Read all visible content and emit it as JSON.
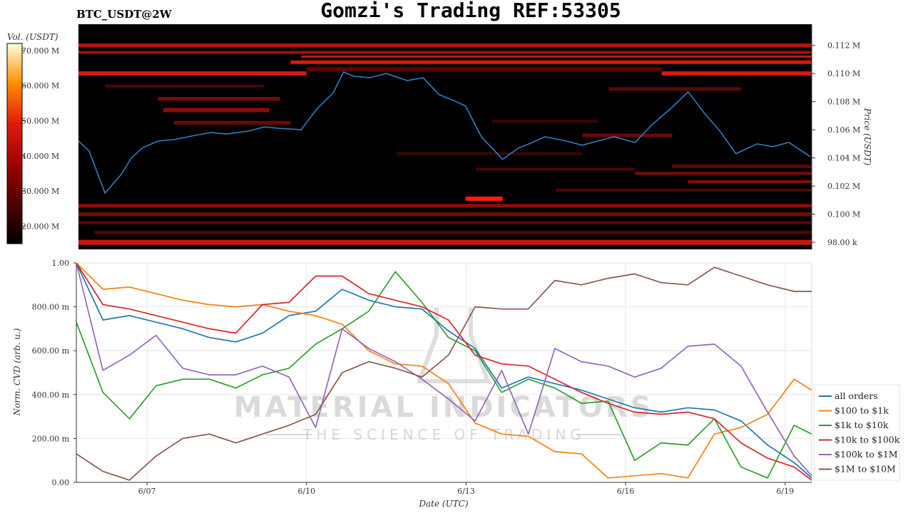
{
  "header": {
    "title": "Gomzi's Trading REF:53305",
    "symbol": "BTC_USDT@2W"
  },
  "watermark": {
    "line1": "MATERIAL INDICATORS",
    "line2": "THE SCIENCE OF TRADING"
  },
  "heatmap": {
    "colorbar_label": "Vol. (USDT)",
    "colorbar_ticks": [
      "70.000 M",
      "60.000 M",
      "50.000 M",
      "40.000 M",
      "30.000 M",
      "20.000 M"
    ],
    "price_label": "Price (USDT)",
    "price_ticks": [
      "0.112 M",
      "0.110 M",
      "0.108 M",
      "0.106 M",
      "0.104 M",
      "0.102 M",
      "0.100 M",
      "98.00 k"
    ],
    "colors": {
      "bg": "#000000",
      "line": "#2f7fc1"
    }
  },
  "cvd": {
    "y_label": "Norm. CVD (arb. u.)",
    "y_ticks": [
      "1.00",
      "800.00 m",
      "600.00 m",
      "400.00 m",
      "200.00 m",
      "0.00"
    ],
    "x_label": "Date (UTC)",
    "x_ticks": [
      "6/07",
      "6/10",
      "6/13",
      "6/16",
      "6/19"
    ]
  },
  "chart_data": [
    {
      "type": "heatmap",
      "title": "BTC_USDT@2W",
      "xlabel": "",
      "ylabel": "Price (USDT)",
      "ylim": [
        97500,
        113500
      ],
      "colorbar_range_musdt": [
        15,
        72
      ],
      "price_line": {
        "x_days": [
          0,
          0.2,
          0.5,
          0.8,
          1.0,
          1.2,
          1.5,
          1.8,
          2.2,
          2.5,
          2.8,
          3.2,
          3.5,
          3.8,
          4.2,
          4.5,
          4.8,
          5.0,
          5.2,
          5.5,
          5.8,
          6.2,
          6.5,
          6.8,
          7.0,
          7.3,
          7.6,
          8.0,
          8.3,
          8.5,
          8.8,
          9.2,
          9.5,
          9.8,
          10.1,
          10.5,
          10.8,
          11.2,
          11.5,
          11.8,
          12.1,
          12.4,
          12.8,
          13.1,
          13.4,
          13.8
        ],
        "y_price": [
          105200,
          104500,
          101500,
          102800,
          104000,
          104700,
          105200,
          105300,
          105600,
          105800,
          105700,
          105900,
          106200,
          106100,
          106000,
          107500,
          108600,
          110100,
          109800,
          109700,
          110000,
          109500,
          109700,
          108500,
          108200,
          107700,
          105500,
          103900,
          104700,
          105000,
          105500,
          105200,
          104900,
          105200,
          105500,
          105100,
          106300,
          107600,
          108700,
          107200,
          105900,
          104300,
          105000,
          104800,
          105100,
          104100
        ]
      }
    },
    {
      "type": "line",
      "title": "",
      "xlabel": "Date (UTC)",
      "ylabel": "Norm. CVD (arb. u.)",
      "ylim": [
        0,
        1
      ],
      "x_days": [
        0,
        0.5,
        1,
        1.5,
        2,
        2.5,
        3,
        3.5,
        4,
        4.5,
        5,
        5.5,
        6,
        6.5,
        7,
        7.5,
        8,
        8.5,
        9,
        9.5,
        10,
        10.5,
        11,
        11.5,
        12,
        12.5,
        13,
        13.5,
        13.83
      ],
      "x_tick_days": [
        1.33,
        4.33,
        7.33,
        10.33,
        13.33
      ],
      "legend": "right",
      "grid": true,
      "series": [
        {
          "name": "all orders",
          "color": "#1f77b4",
          "values": [
            1.0,
            0.74,
            0.76,
            0.73,
            0.7,
            0.66,
            0.64,
            0.68,
            0.76,
            0.78,
            0.88,
            0.83,
            0.8,
            0.79,
            0.69,
            0.61,
            0.43,
            0.48,
            0.45,
            0.42,
            0.38,
            0.34,
            0.32,
            0.34,
            0.33,
            0.28,
            0.17,
            0.09,
            0.02
          ]
        },
        {
          "name": "$100 to $1k",
          "color": "#ff7f0e",
          "values": [
            1.0,
            0.88,
            0.89,
            0.86,
            0.83,
            0.81,
            0.8,
            0.81,
            0.78,
            0.76,
            0.72,
            0.6,
            0.54,
            0.53,
            0.45,
            0.27,
            0.22,
            0.21,
            0.14,
            0.13,
            0.02,
            0.03,
            0.04,
            0.02,
            0.22,
            0.25,
            0.31,
            0.47,
            0.42
          ]
        },
        {
          "name": "$1k to $10k",
          "color": "#2ca02c",
          "values": [
            0.73,
            0.41,
            0.29,
            0.44,
            0.47,
            0.47,
            0.43,
            0.49,
            0.52,
            0.63,
            0.7,
            0.78,
            0.96,
            0.82,
            0.66,
            0.6,
            0.41,
            0.47,
            0.43,
            0.36,
            0.37,
            0.1,
            0.18,
            0.17,
            0.29,
            0.07,
            0.02,
            0.26,
            0.22
          ]
        },
        {
          "name": "$10k to $100k",
          "color": "#d62728",
          "values": [
            1.0,
            0.81,
            0.79,
            0.76,
            0.73,
            0.7,
            0.68,
            0.81,
            0.82,
            0.94,
            0.94,
            0.86,
            0.83,
            0.8,
            0.74,
            0.58,
            0.54,
            0.53,
            0.47,
            0.41,
            0.36,
            0.32,
            0.31,
            0.32,
            0.29,
            0.18,
            0.11,
            0.07,
            0.01
          ]
        },
        {
          "name": "$100k to $1M",
          "color": "#9467bd",
          "values": [
            1.0,
            0.51,
            0.58,
            0.67,
            0.52,
            0.49,
            0.49,
            0.53,
            0.48,
            0.25,
            0.7,
            0.61,
            0.55,
            0.47,
            0.38,
            0.28,
            0.51,
            0.22,
            0.61,
            0.55,
            0.53,
            0.48,
            0.52,
            0.62,
            0.63,
            0.53,
            0.32,
            0.12,
            0.03
          ]
        },
        {
          "name": "$1M to $10M",
          "color": "#8c564b",
          "values": [
            0.13,
            0.05,
            0.01,
            0.12,
            0.2,
            0.22,
            0.18,
            0.22,
            0.26,
            0.31,
            0.5,
            0.55,
            0.52,
            0.48,
            0.58,
            0.8,
            0.79,
            0.79,
            0.92,
            0.9,
            0.93,
            0.95,
            0.91,
            0.9,
            0.98,
            0.94,
            0.9,
            0.87,
            0.87
          ]
        }
      ]
    }
  ]
}
